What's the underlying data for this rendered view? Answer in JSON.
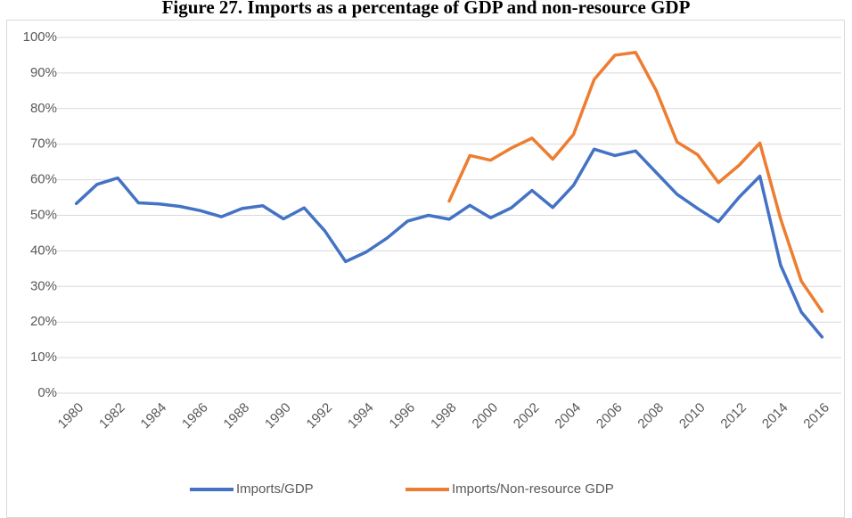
{
  "chart_data": {
    "type": "line",
    "title": "Figure 27. Imports as a percentage of GDP and non-resource GDP",
    "categories": [
      "1980",
      null,
      "1982",
      null,
      "1984",
      null,
      "1986",
      null,
      "1988",
      null,
      "1990",
      null,
      "1992",
      null,
      "1994",
      null,
      "1996",
      null,
      "1998",
      null,
      "2000",
      null,
      "2002",
      null,
      "2004",
      null,
      "2006",
      null,
      "2008",
      null,
      "2010",
      null,
      "2012",
      null,
      "2014",
      null,
      "2016"
    ],
    "series": [
      {
        "name": "Imports/GDP",
        "color": "#4472c4",
        "values": [
          53.3,
          58.7,
          60.5,
          53.5,
          53.2,
          52.5,
          51.3,
          49.6,
          51.9,
          52.7,
          49.0,
          52.1,
          45.6,
          37.0,
          39.7,
          43.6,
          48.4,
          50.0,
          48.9,
          52.8,
          49.3,
          52.1,
          57.0,
          52.2,
          58.4,
          68.6,
          66.8,
          68.1,
          62.0,
          55.9,
          51.9,
          48.2,
          55.1,
          61.0,
          36.0,
          22.8,
          15.8
        ]
      },
      {
        "name": "Imports/Non-resource GDP",
        "color": "#ed7d31",
        "values": [
          null,
          null,
          null,
          null,
          null,
          null,
          null,
          null,
          null,
          null,
          null,
          null,
          null,
          null,
          null,
          null,
          null,
          null,
          54.0,
          66.8,
          65.5,
          68.9,
          71.7,
          65.8,
          72.7,
          88.2,
          95.0,
          95.8,
          85.0,
          70.6,
          67.0,
          59.2,
          64.1,
          70.3,
          49.0,
          31.5,
          23.0
        ]
      }
    ],
    "ylim": [
      0,
      100
    ],
    "yticks": [
      {
        "value": 0,
        "label": "0%"
      },
      {
        "value": 10,
        "label": "10%"
      },
      {
        "value": 20,
        "label": "20%"
      },
      {
        "value": 30,
        "label": "30%"
      },
      {
        "value": 40,
        "label": "40%"
      },
      {
        "value": 50,
        "label": "50%"
      },
      {
        "value": 60,
        "label": "60%"
      },
      {
        "value": 70,
        "label": "70%"
      },
      {
        "value": 80,
        "label": "80%"
      },
      {
        "value": 90,
        "label": "90%"
      },
      {
        "value": 100,
        "label": "100%"
      }
    ],
    "grid": true,
    "legend": "bottom"
  }
}
